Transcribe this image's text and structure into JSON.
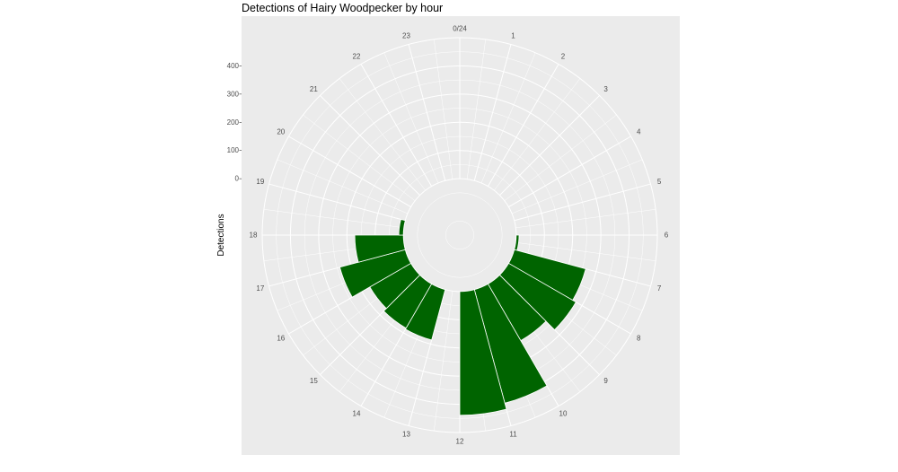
{
  "chart_data": {
    "type": "bar",
    "coord": "polar",
    "title": "Detections of Hairy Woodpecker by hour",
    "xlabel": "",
    "ylabel": "Detections",
    "categories": [
      "0/24",
      "1",
      "2",
      "3",
      "4",
      "5",
      "6",
      "7",
      "8",
      "9",
      "10",
      "11",
      "12",
      "13",
      "14",
      "15",
      "16",
      "17",
      "18",
      "19",
      "20",
      "21",
      "22",
      "23"
    ],
    "values": [
      0,
      0,
      0,
      0,
      0,
      0,
      10,
      262,
      275,
      232,
      417,
      439,
      0,
      185,
      181,
      168,
      240,
      172,
      16,
      0,
      0,
      0,
      0,
      0
    ],
    "y_ticks": [
      "0",
      "100",
      "200",
      "300",
      "400"
    ],
    "ylim": [
      -200,
      500
    ],
    "bar_color": "#006400",
    "panel_color": "#EBEBEB",
    "grid_color": "#FFFFFF",
    "grid": true,
    "legend": "none"
  }
}
